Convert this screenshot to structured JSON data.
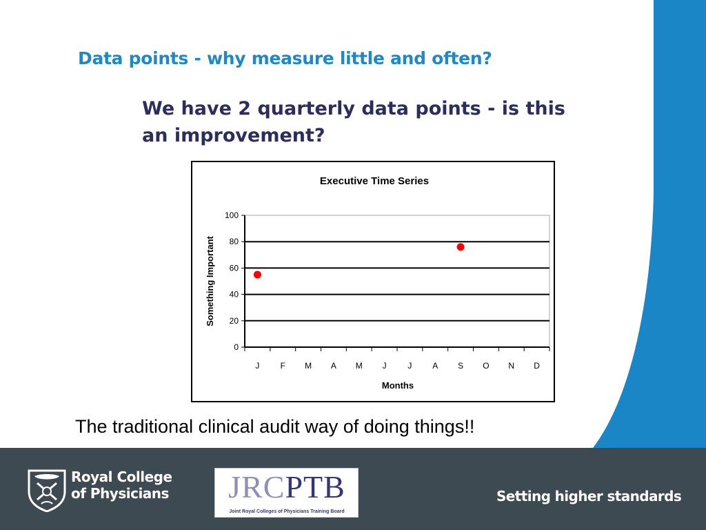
{
  "slide": {
    "title": "Data points  - why measure little and often?",
    "question": "We have 2 quarterly data points - is this an improvement?",
    "caption": "The traditional clinical audit way of doing things!!"
  },
  "colors": {
    "title": "#1F88C6",
    "question": "#2B2E5C",
    "sidebar_blue": "#1B86C6",
    "footer": "#3E4A52",
    "point": "#FF0000"
  },
  "footer": {
    "rcp_line1": "Royal College",
    "rcp_line2": "of Physicians",
    "jrc_part1": "JRC",
    "jrc_part2": "PTB",
    "jrc_subtitle": "Joint Royal Colleges of Physicians Training Board",
    "tagline": "Setting higher standards"
  },
  "chart_data": {
    "type": "scatter",
    "title": "Executive Time Series",
    "xlabel": "Months",
    "ylabel": "Something Important",
    "categories": [
      "J",
      "F",
      "M",
      "A",
      "M",
      "J",
      "J",
      "A",
      "S",
      "O",
      "N",
      "D"
    ],
    "ylim": [
      0,
      100
    ],
    "yticks": [
      0,
      20,
      40,
      60,
      80,
      100
    ],
    "grid": true,
    "series": [
      {
        "points": [
          {
            "x": "J",
            "y": 55
          },
          {
            "x": "S",
            "y": 76
          }
        ]
      }
    ]
  }
}
